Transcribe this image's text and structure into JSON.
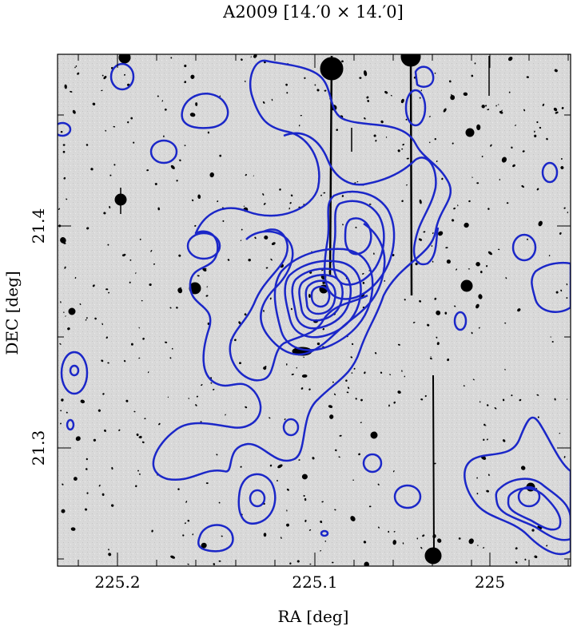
{
  "figure": {
    "title": "A2009  [14.′0 × 14.′0]",
    "x_label": "RA [deg]",
    "y_label": "DEC [deg]",
    "x_tick_labels": [
      "225.2",
      "225.1",
      "225"
    ],
    "y_tick_labels": [
      "21.4",
      "21.3"
    ],
    "contour_color": "#1b27c8",
    "background_color": "#d8d8d8",
    "source_color": "#000000"
  }
}
